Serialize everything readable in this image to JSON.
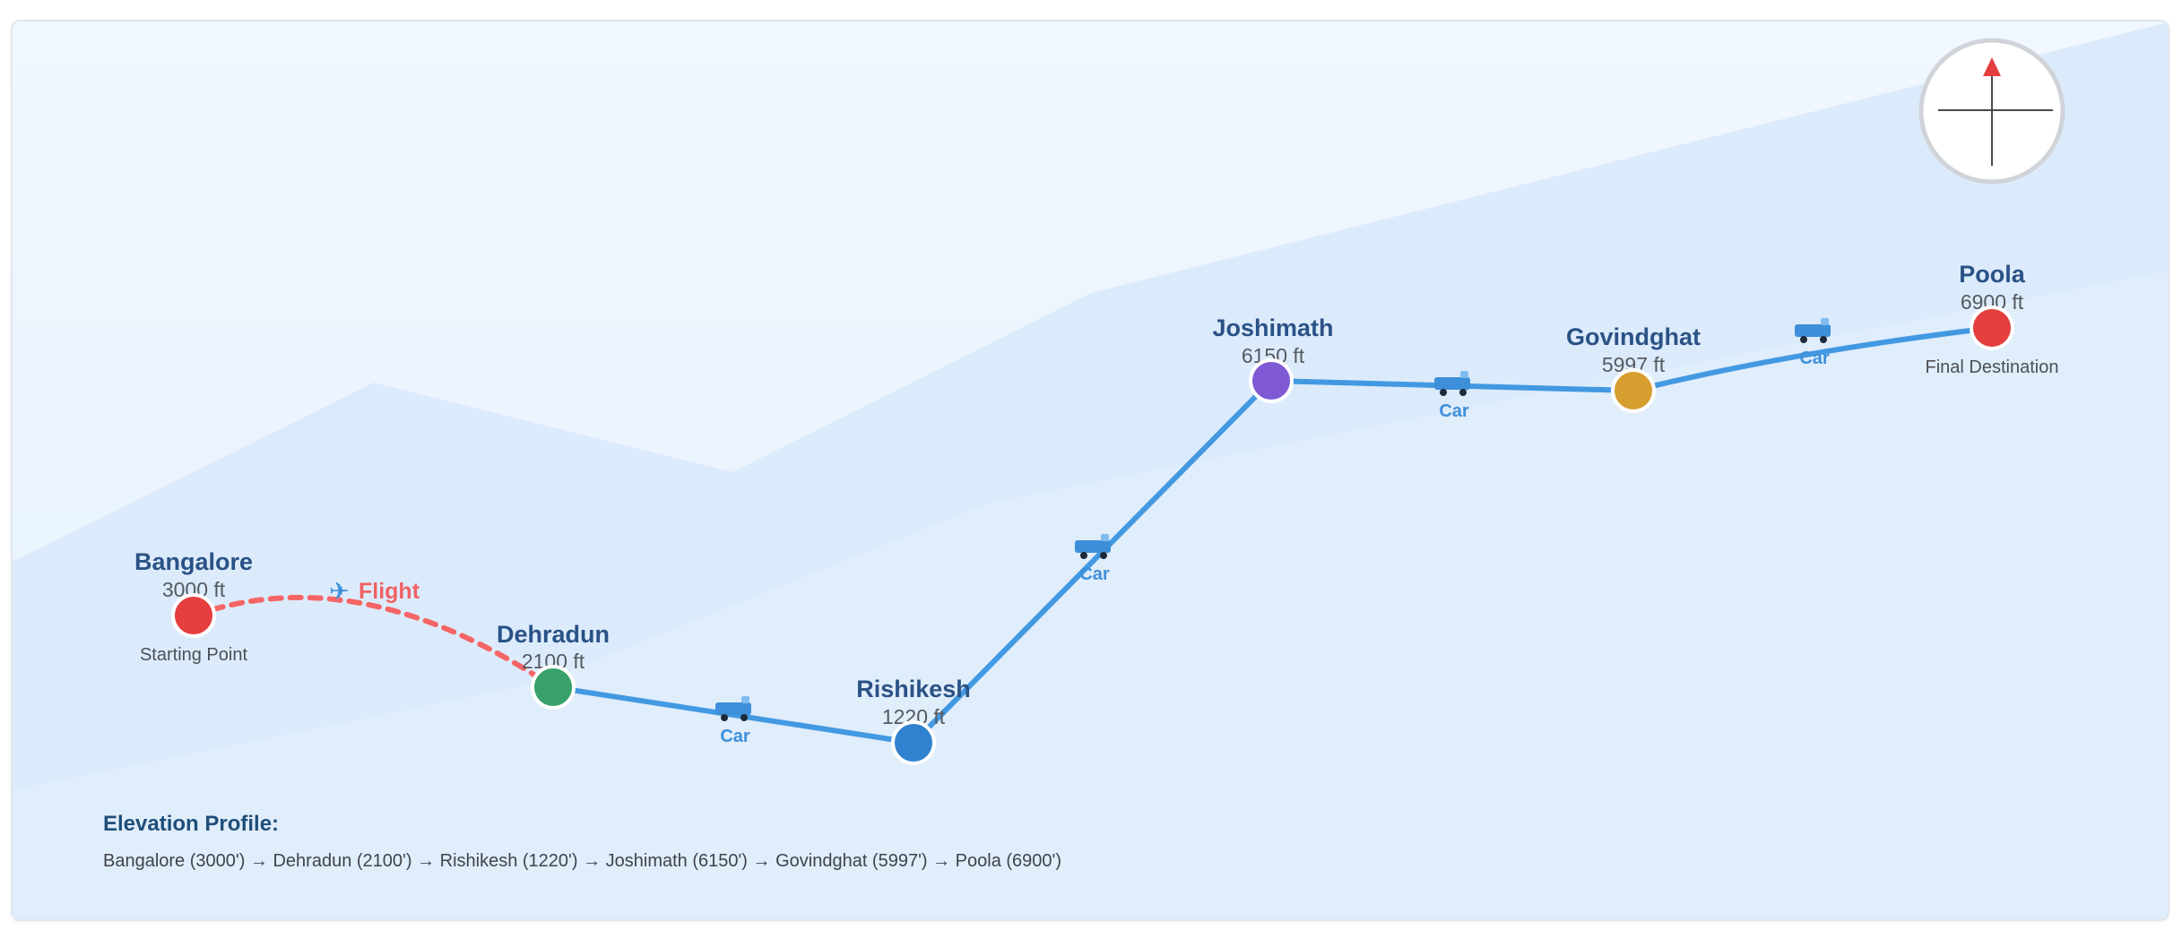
{
  "locations": [
    {
      "name": "Bangalore",
      "elevation": "3000 ft",
      "note": "Starting Point",
      "color": "#e53e3e"
    },
    {
      "name": "Dehradun",
      "elevation": "2100 ft",
      "note": "",
      "color": "#38a169"
    },
    {
      "name": "Rishikesh",
      "elevation": "1220 ft",
      "note": "",
      "color": "#3182ce"
    },
    {
      "name": "Joshimath",
      "elevation": "6150 ft",
      "note": "",
      "color": "#805ad5"
    },
    {
      "name": "Govindghat",
      "elevation": "5997 ft",
      "note": "",
      "color": "#d69e2e"
    },
    {
      "name": "Poola",
      "elevation": "6900 ft",
      "note": "Final Destination",
      "color": "#e53e3e"
    }
  ],
  "legs": [
    {
      "mode": "Flight",
      "icon": "airplane-icon"
    },
    {
      "mode": "Car",
      "icon": "car-icon"
    },
    {
      "mode": "Car",
      "icon": "car-icon"
    },
    {
      "mode": "Car",
      "icon": "car-icon"
    },
    {
      "mode": "Car",
      "icon": "car-icon"
    }
  ],
  "profile": {
    "title": "Elevation Profile:",
    "text": "Bangalore (3000') → Dehradun (2100') → Rishikesh (1220') → Joshimath (6150') → Govindghat (5997') → Poola (6900')"
  },
  "compass": {
    "icon": "compass-icon"
  },
  "colors": {
    "route": "#4299e1",
    "flight": "#f56565",
    "mode_label": "#3d8fd9",
    "place_label": "#2a5286",
    "mountain_back": "#dcebfb",
    "mountain_front": "#c9e2fa"
  }
}
